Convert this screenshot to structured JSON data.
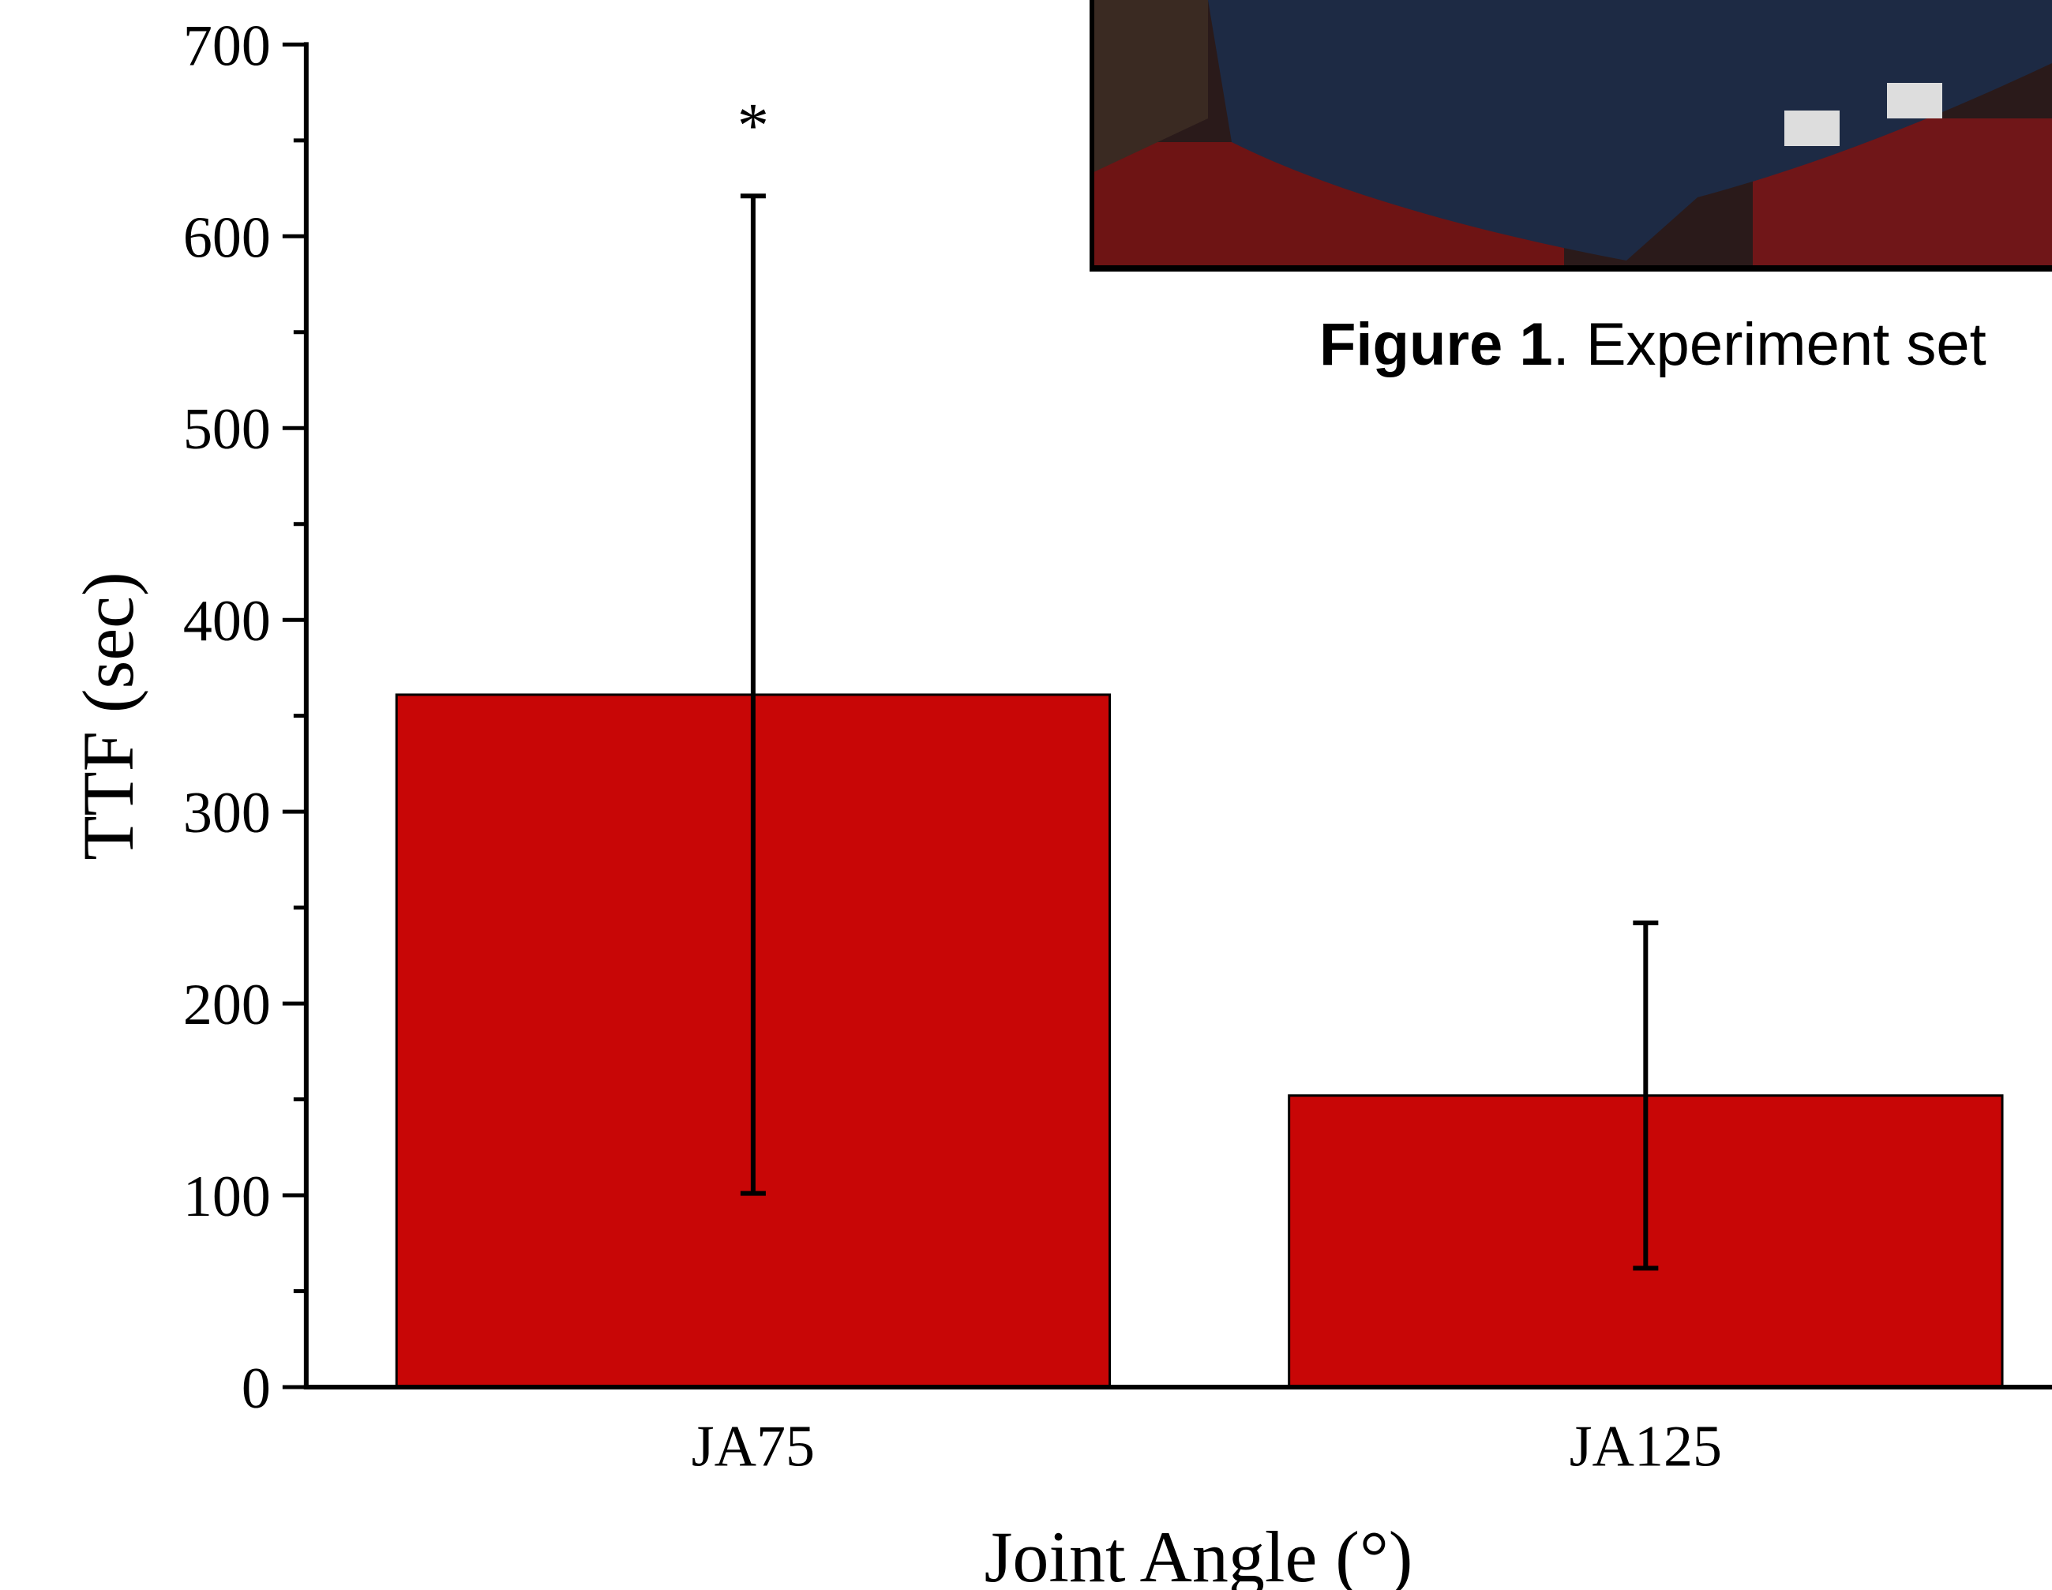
{
  "chart_data": {
    "type": "bar",
    "ylabel": "TTF (sec)",
    "xlabel": "Joint Angle (°)",
    "categories": [
      "JA75",
      "JA125"
    ],
    "values": [
      361,
      152
    ],
    "errors": [
      260,
      90
    ],
    "color": "#c80606",
    "annotation": "*",
    "ylim": [
      0,
      700
    ],
    "yticks": [
      0,
      100,
      200,
      300,
      400,
      500,
      600,
      700
    ],
    "yminorticks": [
      50,
      150,
      250,
      350,
      450,
      550,
      650
    ]
  },
  "caption_label": "Figure 1",
  "caption_text": ". Experiment set"
}
